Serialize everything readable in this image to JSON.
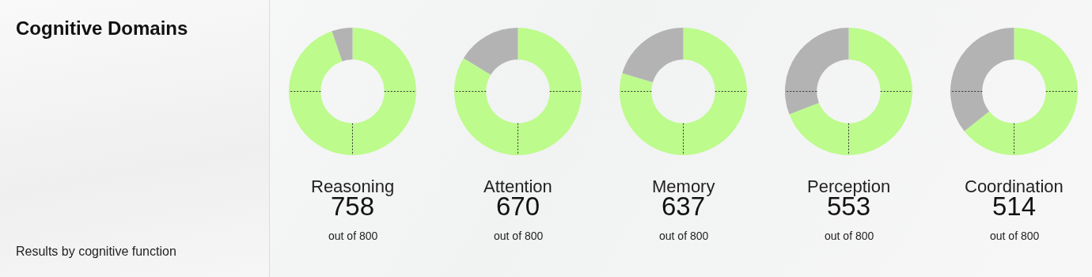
{
  "chart_data": [
    {
      "type": "other",
      "title": "Cognitive Domains",
      "annotations": [
        "Results by cognitive function"
      ]
    },
    {
      "type": "donut",
      "title": "Reasoning",
      "categories": [
        null,
        null
      ],
      "values": [
        758,
        42
      ],
      "colors": [
        "#bdfb8c",
        "#b3b3b3"
      ],
      "value_labels": [
        "758",
        null
      ],
      "annotations": [
        "out of 800"
      ]
    },
    {
      "type": "donut",
      "title": "Attention",
      "categories": [
        null,
        null
      ],
      "values": [
        670,
        130
      ],
      "colors": [
        "#bdfb8c",
        "#b3b3b3"
      ],
      "value_labels": [
        "670",
        null
      ],
      "annotations": [
        "out of 800"
      ]
    },
    {
      "type": "donut",
      "title": "Memory",
      "categories": [
        null,
        null
      ],
      "values": [
        637,
        163
      ],
      "colors": [
        "#bdfb8c",
        "#b3b3b3"
      ],
      "value_labels": [
        "637",
        null
      ],
      "annotations": [
        "out of 800"
      ]
    },
    {
      "type": "donut",
      "title": "Perception",
      "categories": [
        null,
        null
      ],
      "values": [
        553,
        247
      ],
      "colors": [
        "#bdfb8c",
        "#b3b3b3"
      ],
      "value_labels": [
        "553",
        null
      ],
      "annotations": [
        "out of 800"
      ]
    },
    {
      "type": "donut",
      "title": "Coordination",
      "categories": [
        null,
        null
      ],
      "values": [
        514,
        286
      ],
      "colors": [
        "#bdfb8c",
        "#b3b3b3"
      ],
      "value_labels": [
        "514",
        null
      ],
      "annotations": [
        "out of 800"
      ]
    }
  ]
}
